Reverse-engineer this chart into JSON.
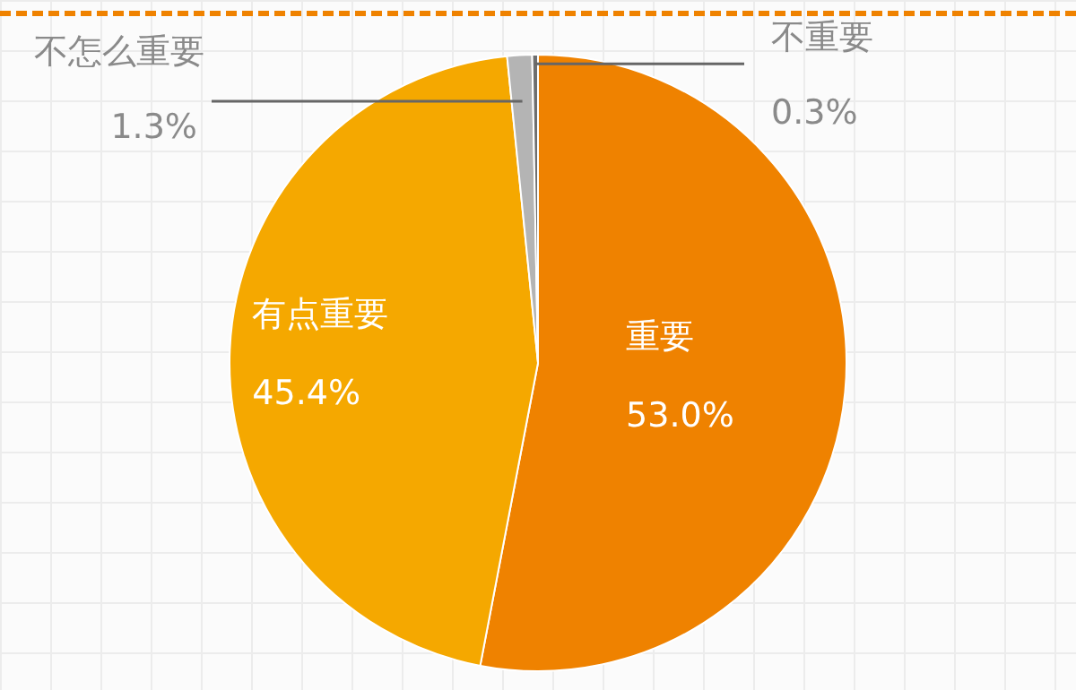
{
  "chart_data": {
    "type": "pie",
    "categories": [
      "重要",
      "有点重要",
      "不怎么重要",
      "不重要"
    ],
    "values": [
      53.0,
      45.4,
      1.3,
      0.3
    ],
    "colors": [
      "#ef8200",
      "#f5a800",
      "#b4b4b4",
      "#6e6e6e"
    ],
    "value_labels": [
      "53.0%",
      "45.4%",
      "1.3%",
      "0.3%"
    ],
    "legend": false
  }
}
